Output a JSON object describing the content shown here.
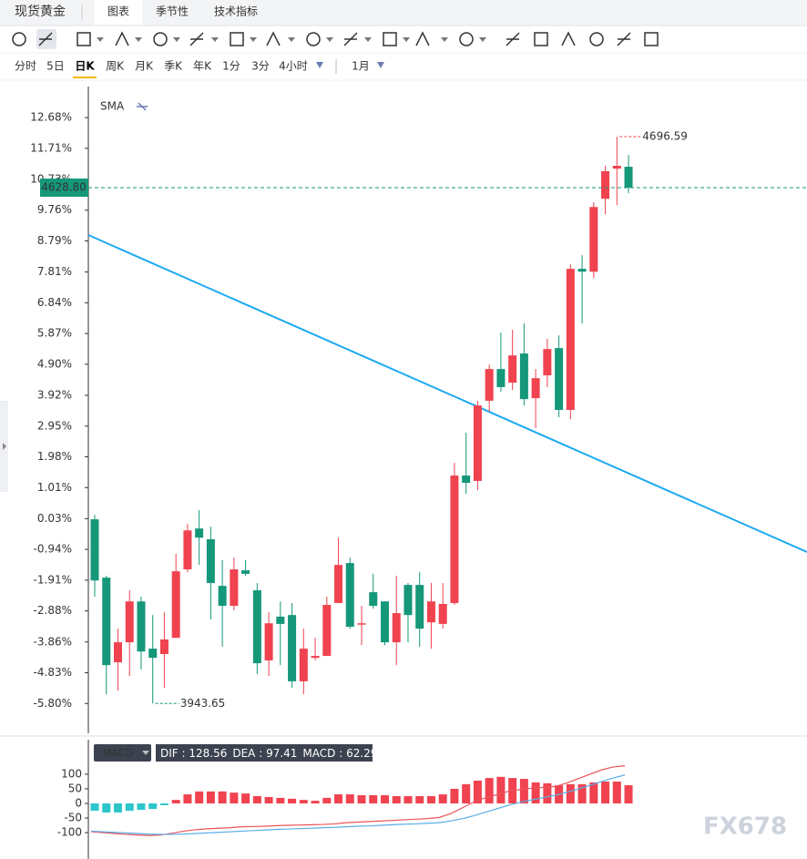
{
  "symbol": "现货黄金",
  "tabs": [
    "图表",
    "季节性",
    "技术指标"
  ],
  "timeframes": [
    "分时",
    "5日",
    "日K",
    "周K",
    "月K",
    "季K",
    "年K",
    "1分",
    "3分",
    "4小时"
  ],
  "active_timeframe": 2,
  "interval": "1月",
  "watermark": "FX678",
  "chart_data": [
    {
      "type": "candlestick",
      "indicator": "SMA",
      "up_color": "#f0424f",
      "down_color": "#15977a",
      "ylim": [
        -6.74,
        13.66
      ],
      "yticks": [
        {
          "value": 12.68,
          "label": "12.68%"
        },
        {
          "value": 11.71,
          "label": "11.71%"
        },
        {
          "value": 10.73,
          "label": "10.73%"
        },
        {
          "value": 9.76,
          "label": "9.76%"
        },
        {
          "value": 8.79,
          "label": "8.79%"
        },
        {
          "value": 7.81,
          "label": "7.81%"
        },
        {
          "value": 6.84,
          "label": "6.84%"
        },
        {
          "value": 5.87,
          "label": "5.87%"
        },
        {
          "value": 4.9,
          "label": "4.90%"
        },
        {
          "value": 3.92,
          "label": "3.92%"
        },
        {
          "value": 2.95,
          "label": "2.95%"
        },
        {
          "value": 1.98,
          "label": "1.98%"
        },
        {
          "value": 1.01,
          "label": "1.01%"
        },
        {
          "value": 0.03,
          "label": "0.03%"
        },
        {
          "value": -0.94,
          "label": "-0.94%"
        },
        {
          "value": -1.91,
          "label": "-1.91%"
        },
        {
          "value": -2.88,
          "label": "-2.88%"
        },
        {
          "value": -3.86,
          "label": "-3.86%"
        },
        {
          "value": -4.83,
          "label": "-4.83%"
        },
        {
          "value": -5.8,
          "label": "-5.80%"
        }
      ],
      "open": [
        0.01,
        -1.83,
        -4.5,
        -3.87,
        -2.58,
        -4.07,
        -4.24,
        -3.73,
        -1.57,
        -0.28,
        -0.62,
        -2.09,
        -2.72,
        -1.6,
        -2.23,
        -4.44,
        -3.06,
        -3.01,
        -5.1,
        -4.36,
        -4.3,
        -2.63,
        -1.37,
        -3.29,
        -2.29,
        -2.58,
        -3.87,
        -2.06,
        -2.06,
        -3.24,
        -3.29,
        -2.63,
        1.39,
        1.22,
        3.75,
        4.75,
        4.32,
        5.24,
        3.83,
        4.55,
        5.41,
        3.46,
        7.91,
        7.82,
        10.12,
        11.07,
        11.13
      ],
      "high": [
        0.15,
        -1.77,
        -3.44,
        -2.23,
        -2.43,
        -3.01,
        -2.92,
        -1.08,
        -0.13,
        0.3,
        -0.22,
        -1.28,
        -1.2,
        -1.28,
        -2.0,
        -2.92,
        -2.58,
        -2.63,
        -3.44,
        -3.73,
        -2.43,
        -0.57,
        -1.2,
        -2.72,
        -1.71,
        -2.58,
        -1.77,
        -2.0,
        -1.66,
        -2.0,
        -2.0,
        1.79,
        2.74,
        3.75,
        4.89,
        5.9,
        5.99,
        6.19,
        4.75,
        5.7,
        5.81,
        8.05,
        8.34,
        10.01,
        11.16,
        12.08,
        11.5
      ],
      "low": [
        -2.43,
        -5.51,
        -5.39,
        -4.93,
        -4.73,
        -5.8,
        -5.31,
        -3.73,
        -1.66,
        -1.43,
        -3.15,
        -4.01,
        -2.86,
        -1.77,
        -4.87,
        -4.93,
        -4.59,
        -5.31,
        -5.51,
        -4.44,
        -4.3,
        -2.63,
        -3.44,
        -3.96,
        -2.81,
        -3.96,
        -4.59,
        -3.87,
        -4.01,
        -4.07,
        -3.44,
        -2.69,
        0.81,
        0.93,
        3.4,
        4.03,
        4.09,
        3.6,
        2.88,
        4.18,
        3.23,
        3.17,
        6.19,
        7.62,
        9.63,
        9.92,
        10.3
      ],
      "close": [
        -1.92,
        -4.59,
        -3.87,
        -2.58,
        -4.16,
        -4.36,
        -3.78,
        -1.63,
        -0.34,
        -0.57,
        -2.0,
        -2.72,
        -1.57,
        -1.71,
        -4.53,
        -3.27,
        -3.29,
        -5.1,
        -4.07,
        -4.3,
        -2.69,
        -1.43,
        -3.38,
        -3.27,
        -2.72,
        -3.87,
        -2.95,
        -3.01,
        -3.44,
        -2.58,
        -2.66,
        1.39,
        1.16,
        3.6,
        4.75,
        4.18,
        5.18,
        3.8,
        4.46,
        5.38,
        3.46,
        7.91,
        7.82,
        9.86,
        10.99,
        11.16,
        10.47
      ],
      "high_label": "4696.59",
      "low_label": "3943.65",
      "last_price_label": "4628.80"
    },
    {
      "type": "macd",
      "ylim": [
        -181,
        209
      ],
      "yticks": [
        100,
        50,
        0,
        -50,
        -100
      ],
      "series": [
        {
          "name": "DIF",
          "color": "#e8545a",
          "values": [
            -97,
            -100,
            -103,
            -106,
            -108,
            -110,
            -108,
            -102,
            -95,
            -90,
            -87,
            -85,
            -83,
            -80,
            -79,
            -78,
            -76,
            -75,
            -74,
            -73,
            -72,
            -70,
            -66,
            -64,
            -62,
            -60,
            -58,
            -56,
            -54,
            -52,
            -48,
            -35,
            -15,
            5,
            20,
            30,
            42,
            48,
            52,
            55,
            58,
            70,
            85,
            100,
            115,
            125,
            128.56
          ]
        },
        {
          "name": "DEA",
          "color": "#5aaee8",
          "values": [
            -95,
            -97,
            -99,
            -101,
            -103,
            -105,
            -106,
            -106,
            -105,
            -103,
            -101,
            -99,
            -97,
            -95,
            -93,
            -91,
            -89,
            -88,
            -86,
            -85,
            -83,
            -82,
            -80,
            -78,
            -77,
            -75,
            -73,
            -71,
            -70,
            -68,
            -66,
            -60,
            -52,
            -42,
            -30,
            -18,
            -6,
            4,
            12,
            20,
            28,
            38,
            50,
            62,
            75,
            87,
            97.41
          ]
        },
        {
          "name": "MACD",
          "up_color": "#f0424f",
          "down_color": "#2cc6cb",
          "values": [
            -25,
            -31,
            -31,
            -25,
            -22,
            -19,
            -6,
            12,
            31,
            41,
            41,
            41,
            37,
            34,
            25,
            22,
            19,
            16,
            12,
            9,
            19,
            31,
            31,
            28,
            28,
            28,
            25,
            25,
            25,
            25,
            31,
            50,
            66,
            78,
            87,
            91,
            87,
            84,
            72,
            69,
            62,
            66,
            66,
            72,
            75,
            75,
            62.29
          ]
        }
      ]
    }
  ]
}
